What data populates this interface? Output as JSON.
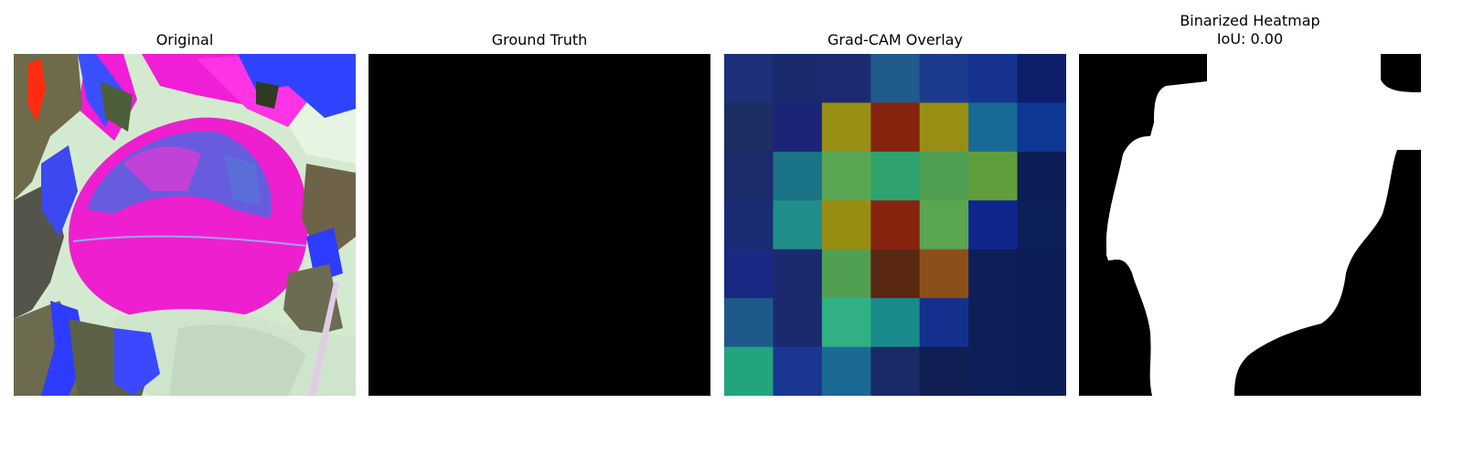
{
  "panels": {
    "original": {
      "title": "Original"
    },
    "ground_truth": {
      "title": "Ground Truth"
    },
    "gradcam": {
      "title": "Grad-CAM Overlay"
    },
    "binarized": {
      "title": "Binarized Heatmap",
      "subtitle": "IoU: 0.00"
    }
  },
  "gradcam_grid": {
    "rows": 7,
    "cols": 7,
    "cells": [
      [
        "#1e2f7b",
        "#1b2a6e",
        "#1c2a72",
        "#1e5b8c",
        "#1a3a8c",
        "#15338f",
        "#0e1e6b"
      ],
      [
        "#1c2e62",
        "#1b2477",
        "#978e14",
        "#86230e",
        "#978f14",
        "#176a95",
        "#0f3795"
      ],
      [
        "#1c2b6c",
        "#1a7386",
        "#5aa552",
        "#2fa36d",
        "#51a052",
        "#5f9e3a",
        "#0c1e55"
      ],
      [
        "#1a2c73",
        "#1f8e8b",
        "#978e11",
        "#86230e",
        "#5aa552",
        "#0e268d",
        "#0d1f58"
      ],
      [
        "#1b2984",
        "#1b2a6e",
        "#51a052",
        "#5a2712",
        "#8c4f19",
        "#0e1e58",
        "#0c1e55"
      ],
      [
        "#1d5a8a",
        "#1b2a6e",
        "#30b083",
        "#198b8a",
        "#13308e",
        "#0e1e58",
        "#0c1e55"
      ],
      [
        "#22a47d",
        "#1b3690",
        "#1a6a95",
        "#192a66",
        "#121f55",
        "#0e1e58",
        "#0c1e55"
      ]
    ]
  }
}
